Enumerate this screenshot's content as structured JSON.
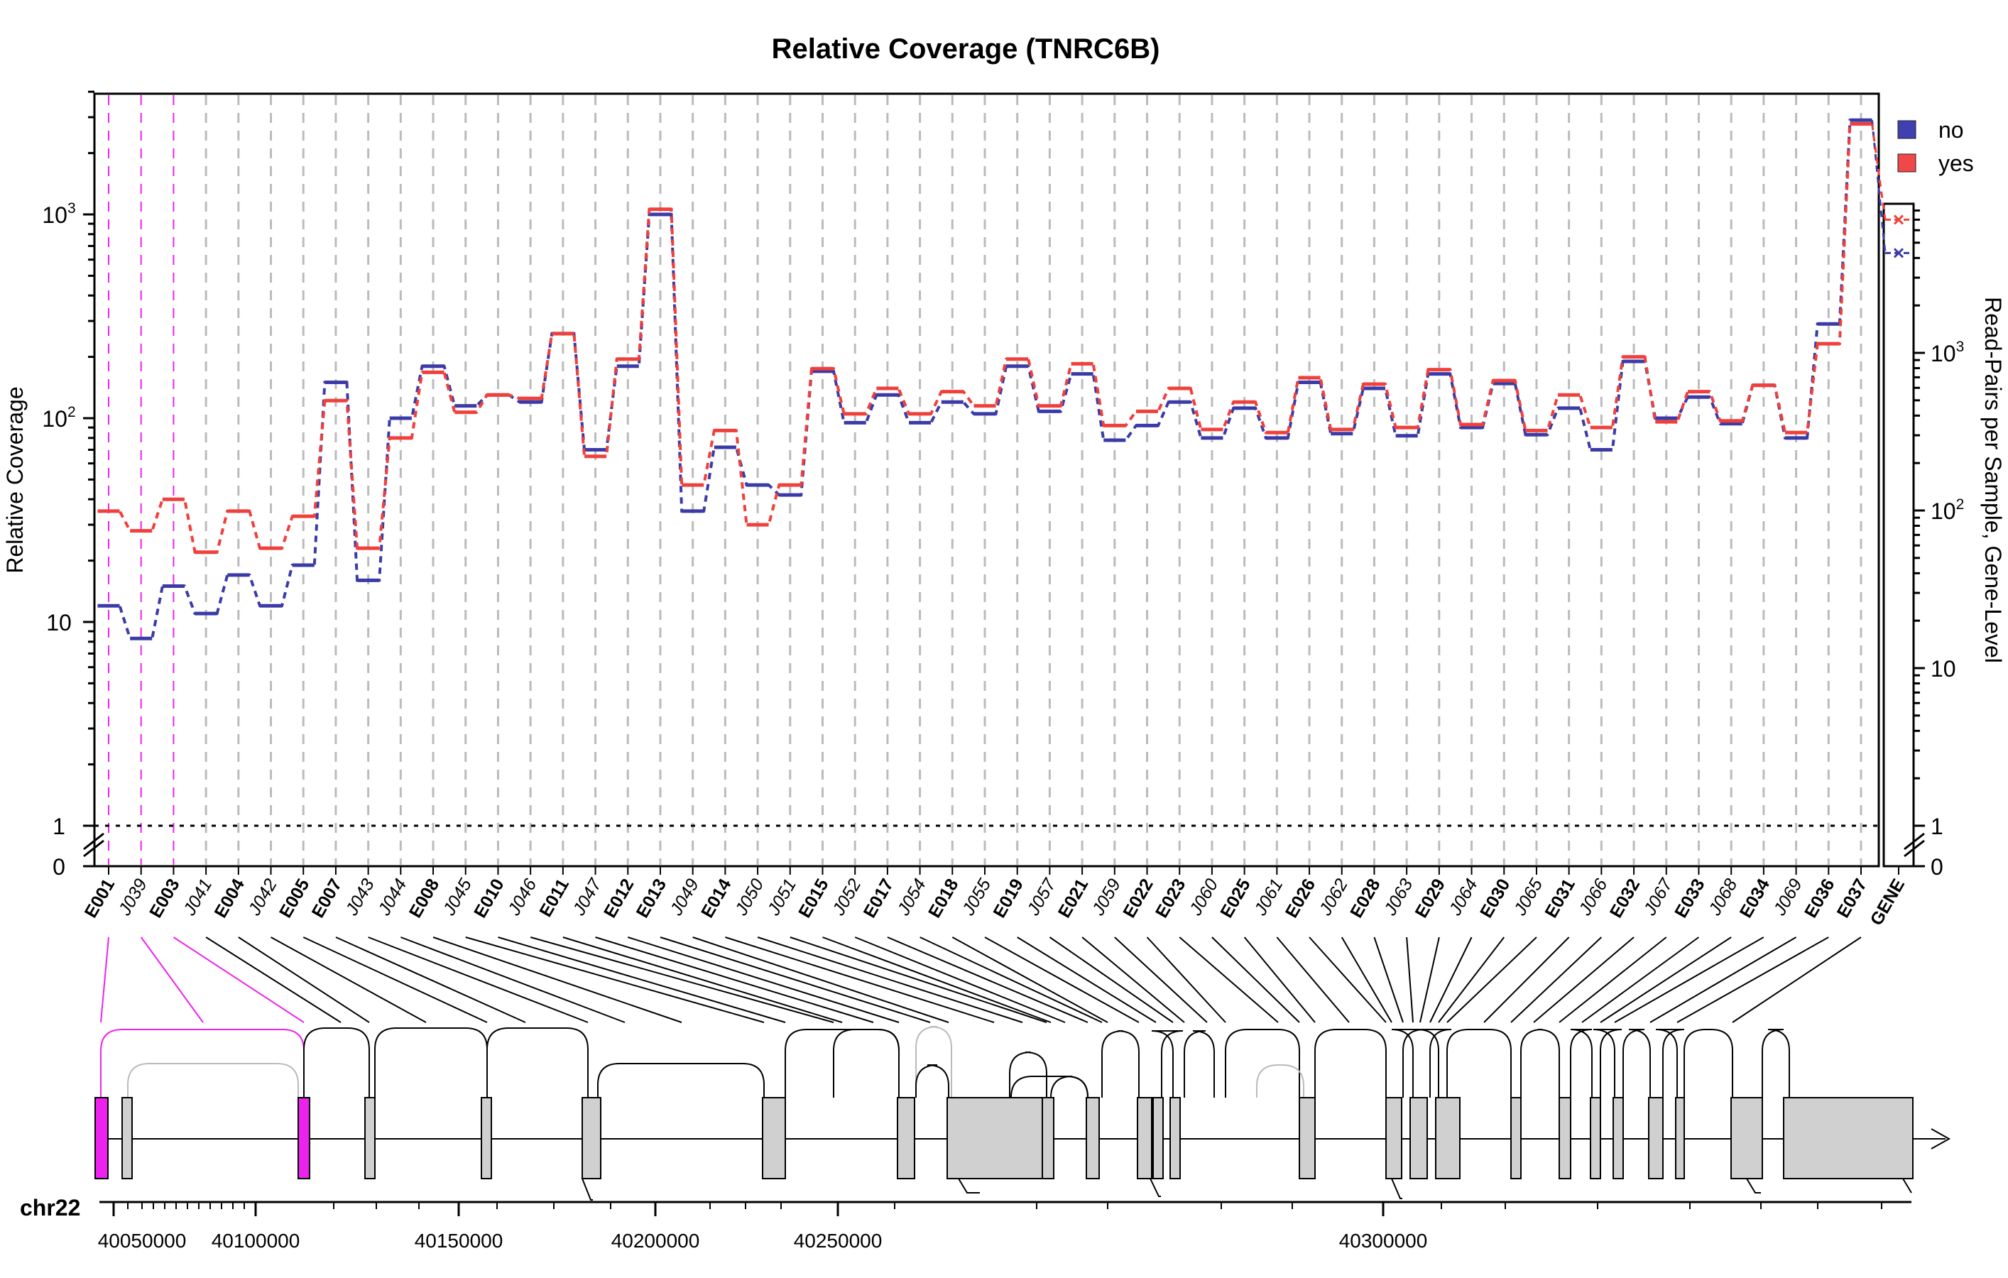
{
  "title": "Relative Coverage (TNRC6B)",
  "ylabel": "Relative Coverage",
  "y2label": "Read-Pairs per Sample, Gene-Level",
  "chromosome": "chr22",
  "colors": {
    "no": "#3b3ba8",
    "yes": "#f0403c",
    "highlight": "#ee22ee",
    "grid": "#bbbbbb",
    "feature_fill": "#d0d0d0"
  },
  "legend": [
    {
      "name": "no",
      "color": "#4040b0"
    },
    {
      "name": "yes",
      "color": "#f04848"
    }
  ],
  "highlight_labels": [
    "E001",
    "J039",
    "E003"
  ],
  "y_ticks": [
    {
      "value": 1000,
      "base": "10",
      "exp": "3"
    },
    {
      "value": 100,
      "base": "10",
      "exp": "2"
    },
    {
      "value": 10,
      "base": "10",
      "exp": ""
    },
    {
      "value": 1,
      "base": "1",
      "exp": ""
    },
    {
      "value": 0,
      "base": "0",
      "exp": ""
    }
  ],
  "y2_ticks": [
    {
      "value": 1000,
      "base": "10",
      "exp": "3"
    },
    {
      "value": 100,
      "base": "10",
      "exp": "2"
    },
    {
      "value": 10,
      "base": "10",
      "exp": ""
    },
    {
      "value": 1,
      "base": "1",
      "exp": ""
    },
    {
      "value": 0,
      "base": "0",
      "exp": ""
    }
  ],
  "genomic_ticks": [
    "40050000",
    "40100000",
    "40150000",
    "40200000",
    "40250000",
    "40300000"
  ],
  "chart_data": {
    "type": "line",
    "title": "Relative Coverage (TNRC6B)",
    "ylabel": "Relative Coverage",
    "y_scale": "log",
    "categories": [
      "E001",
      "J039",
      "E003",
      "J041",
      "E004",
      "J042",
      "E005",
      "E007",
      "J043",
      "J044",
      "E008",
      "J045",
      "E010",
      "J046",
      "E011",
      "J047",
      "E012",
      "E013",
      "J049",
      "E014",
      "J050",
      "J051",
      "E015",
      "J052",
      "E017",
      "J054",
      "E018",
      "J055",
      "E019",
      "J057",
      "E021",
      "J059",
      "E022",
      "E023",
      "J060",
      "E025",
      "J061",
      "E026",
      "J062",
      "E028",
      "J063",
      "E029",
      "J064",
      "E030",
      "J065",
      "E031",
      "J066",
      "E032",
      "J067",
      "E033",
      "J068",
      "E034",
      "J069",
      "E036",
      "E037"
    ],
    "series": [
      {
        "name": "no",
        "values": [
          12,
          8.3,
          15,
          11,
          17,
          12,
          19,
          150,
          16,
          100,
          180,
          115,
          130,
          120,
          260,
          70,
          180,
          1000,
          35,
          72,
          47,
          42,
          170,
          95,
          130,
          95,
          120,
          105,
          180,
          108,
          165,
          78,
          92,
          120,
          80,
          112,
          80,
          150,
          84,
          140,
          82,
          165,
          90,
          148,
          83,
          112,
          70,
          190,
          100,
          127,
          94,
          145,
          80,
          290,
          2900
        ]
      },
      {
        "name": "yes",
        "values": [
          35,
          28,
          40,
          22,
          35,
          23,
          33,
          122,
          23,
          80,
          168,
          107,
          130,
          125,
          260,
          65,
          195,
          1060,
          47,
          87,
          30,
          47,
          175,
          105,
          140,
          105,
          135,
          115,
          195,
          115,
          185,
          92,
          108,
          140,
          88,
          120,
          85,
          158,
          88,
          147,
          90,
          173,
          93,
          153,
          87,
          130,
          90,
          200,
          96,
          135,
          97,
          145,
          85,
          232,
          2780
        ]
      }
    ],
    "gene_level": {
      "ylabel": "Read-Pairs per Sample, Gene-Level",
      "no": 4300,
      "yes": 7000
    },
    "ylim": [
      0.8,
      4500
    ],
    "reference_line": 1,
    "grid": true,
    "legend_position": "top-right"
  }
}
